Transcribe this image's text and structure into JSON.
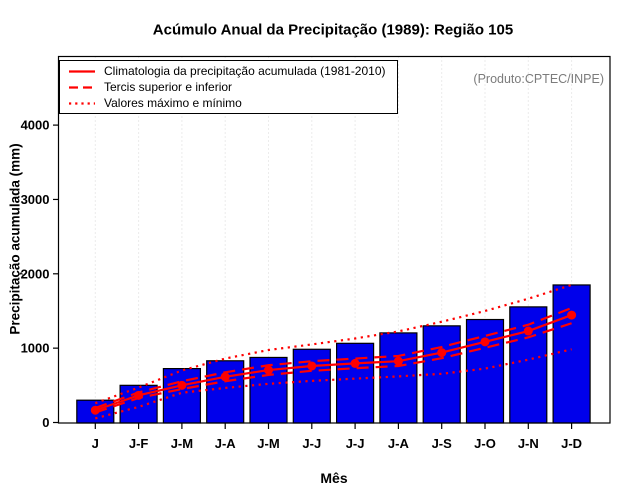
{
  "title": "Acúmulo Anual da Precipitação (1989): Região 105",
  "watermark": "(Produto:CPTEC/INPE)",
  "axes": {
    "x_label": "Mês",
    "y_label": "Precipitação acumulada (mm)"
  },
  "legend": {
    "items": [
      {
        "label": "Climatologia da precipitação acumulada (1981-2010)",
        "style": "solid"
      },
      {
        "label": "Tercis superior e inferior",
        "style": "dashed"
      },
      {
        "label": "Valores máximo e mínimo",
        "style": "dotted"
      }
    ]
  },
  "colors": {
    "bar_fill": "#0000EB",
    "bar_border": "#000000",
    "line_red": "#FF0000",
    "grid": "#D8D8D8",
    "axis": "#000000",
    "watermark_text": "#7C7C7C"
  },
  "chart_data": {
    "type": "bar",
    "title": "Acúmulo Anual da Precipitação (1989): Região 105",
    "xlabel": "Mês",
    "ylabel": "Precipitação acumulada (mm)",
    "ylim": [
      0,
      4900
    ],
    "y_ticks": [
      0,
      1000,
      2000,
      3000,
      4000
    ],
    "grid": "vertical-dotted",
    "legend_position": "top-left",
    "annotation": "(Produto:CPTEC/INPE)",
    "categories": [
      "J",
      "J-F",
      "J-M",
      "J-A",
      "J-M",
      "J-J",
      "J-J",
      "J-A",
      "J-S",
      "J-O",
      "J-N",
      "J-D"
    ],
    "bars": {
      "name": "1989",
      "values": [
        300,
        500,
        725,
        830,
        875,
        985,
        1065,
        1205,
        1300,
        1385,
        1555,
        1850
      ]
    },
    "series": [
      {
        "name": "Climatologia da precipitação acumulada (1981-2010)",
        "style": "solid",
        "marker": true,
        "values": [
          165,
          365,
          500,
          615,
          705,
          760,
          795,
          825,
          940,
          1085,
          1230,
          1445
        ]
      },
      {
        "name": "Tercil superior",
        "style": "dashed",
        "marker": false,
        "values": [
          195,
          405,
          555,
          675,
          770,
          825,
          860,
          895,
          1015,
          1165,
          1315,
          1540
        ]
      },
      {
        "name": "Tercil inferior",
        "style": "dashed",
        "marker": false,
        "values": [
          135,
          330,
          450,
          555,
          640,
          695,
          730,
          760,
          865,
          1005,
          1145,
          1335
        ]
      },
      {
        "name": "Valor máximo",
        "style": "dotted",
        "marker": false,
        "values": [
          260,
          470,
          700,
          860,
          975,
          1050,
          1130,
          1225,
          1355,
          1500,
          1665,
          1850
        ]
      },
      {
        "name": "Valor mínimo",
        "style": "dotted",
        "marker": false,
        "values": [
          55,
          210,
          400,
          465,
          520,
          560,
          590,
          620,
          655,
          725,
          845,
          985
        ]
      }
    ]
  }
}
